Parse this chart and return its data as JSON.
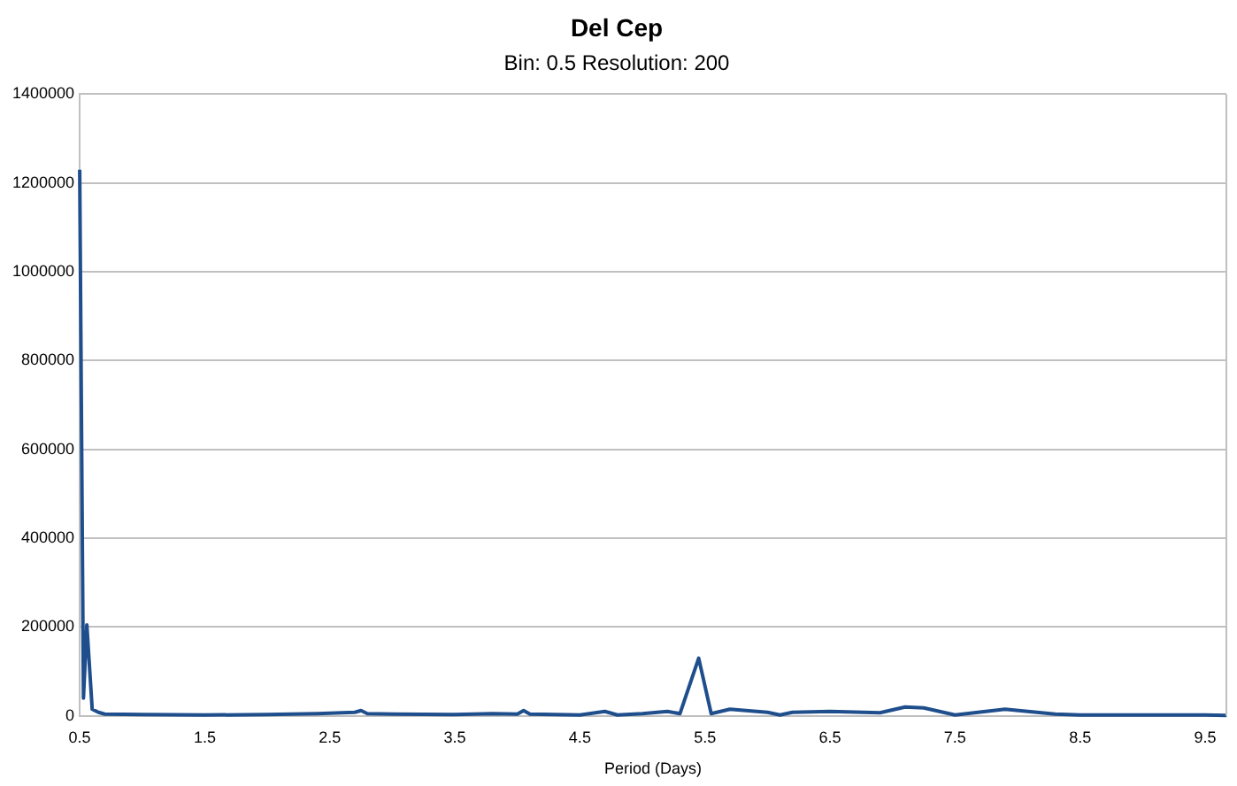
{
  "chart_data": {
    "type": "line",
    "title": "Del Cep",
    "subtitle": "Bin: 0.5 Resolution: 200",
    "xlabel": "Period (Days)",
    "x": [
      0.5,
      0.53,
      0.557,
      0.6,
      0.65,
      0.7,
      1.0,
      1.5,
      2.0,
      2.4,
      2.7,
      2.75,
      2.8,
      3.0,
      3.5,
      3.8,
      4.0,
      4.05,
      4.1,
      4.5,
      4.7,
      4.8,
      5.0,
      5.2,
      5.3,
      5.45,
      5.55,
      5.7,
      6.0,
      6.1,
      6.2,
      6.5,
      6.9,
      7.1,
      7.25,
      7.5,
      7.9,
      8.3,
      8.5,
      9.5,
      9.67
    ],
    "series": [
      {
        "color": "#1f4e8c",
        "values": [
          1230000,
          40000,
          205000,
          15000,
          8000,
          4000,
          3000,
          2000,
          3000,
          5000,
          8000,
          12000,
          5000,
          4000,
          3000,
          5000,
          4000,
          12000,
          4000,
          2000,
          10000,
          2000,
          5000,
          10000,
          5000,
          130000,
          5000,
          15000,
          8000,
          2000,
          8000,
          10000,
          7000,
          20000,
          18000,
          2000,
          15000,
          4000,
          2000,
          2000,
          1000
        ]
      }
    ],
    "xlim": [
      0.5,
      9.67
    ],
    "xticks": [
      0.5,
      1.5,
      2.5,
      3.5,
      4.5,
      5.5,
      6.5,
      7.5,
      8.5,
      9.5
    ],
    "ylim": [
      0,
      1400000
    ],
    "yticks": [
      0,
      200000,
      400000,
      600000,
      800000,
      1000000,
      1200000,
      1400000
    ],
    "grid": "y",
    "legend": false,
    "marker": "none",
    "line_style": "solid"
  }
}
